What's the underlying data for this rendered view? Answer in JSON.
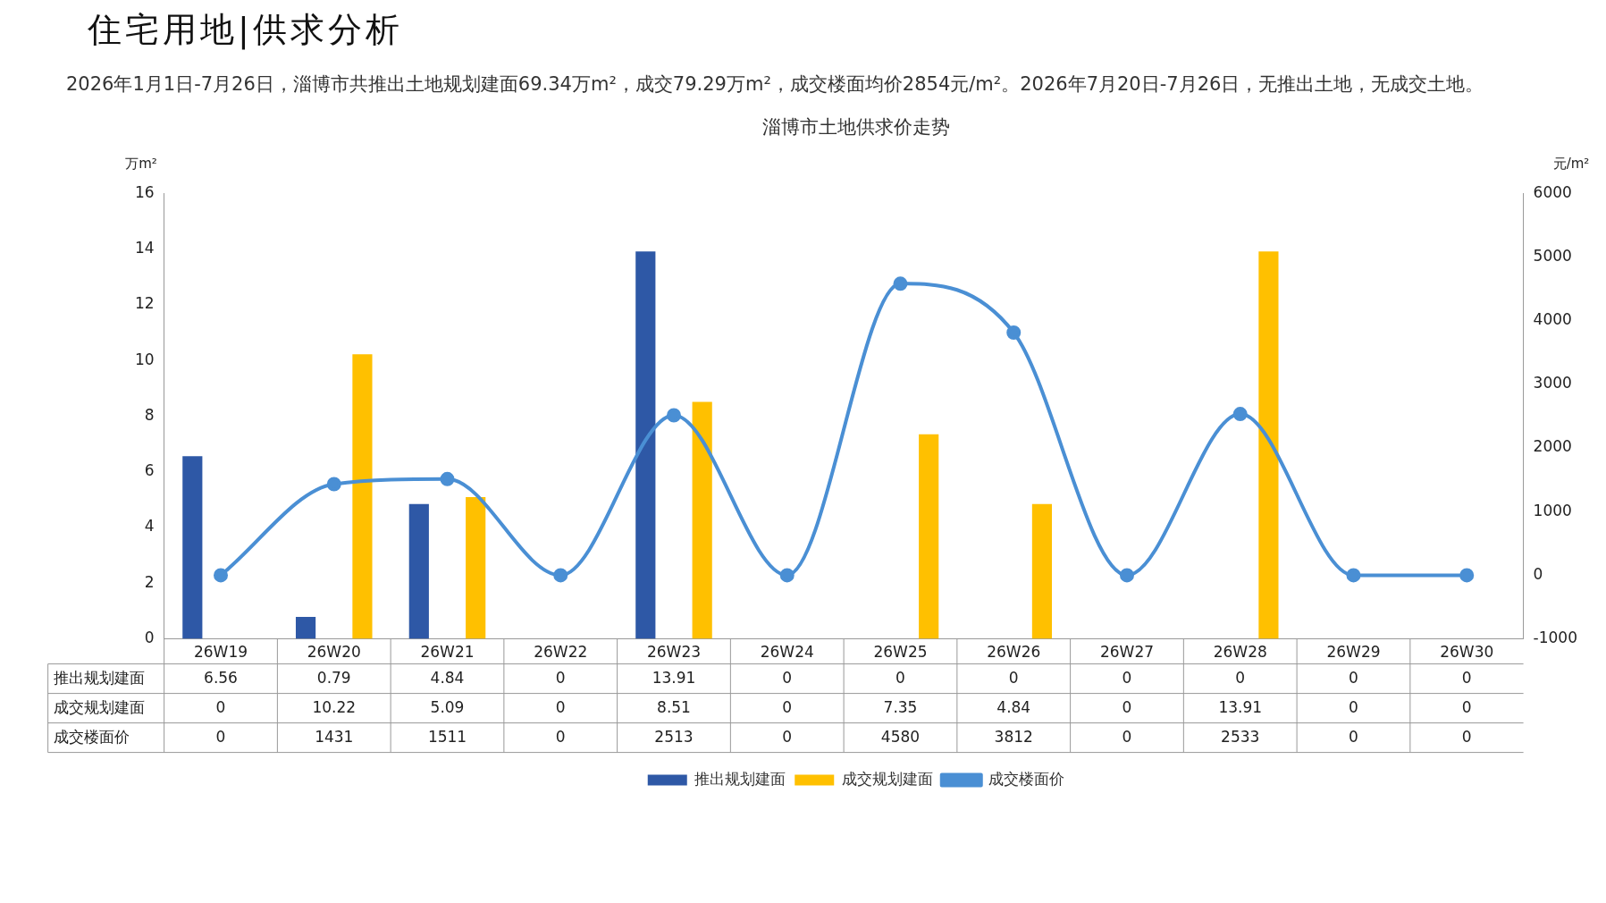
{
  "chart_data": {
    "type": "bar",
    "title": "淄博市土地供求价走势",
    "annotations": [
      "住宅用地|供求分析",
      "2026年1月1日-7月26日，淄博市共推出土地规划建面69.34万m²，成交79.29万m²，成交楼面均价2854元/m²。2026年7月20日-7月26日，无推出土地，无成交土地。"
    ],
    "ylabel": "万m²",
    "y2label": "元/m²",
    "categories": [
      "26W19",
      "26W20",
      "26W21",
      "26W22",
      "26W23",
      "26W24",
      "26W25",
      "26W26",
      "26W27",
      "26W28",
      "26W29",
      "26W30"
    ],
    "series": [
      {
        "name": "推出规划建面",
        "color": "#2e58a6",
        "values": [
          6.56,
          0.79,
          4.84,
          0,
          13.91,
          0,
          0,
          0,
          0,
          0,
          0,
          0
        ]
      },
      {
        "name": "成交规划建面",
        "color": "#ffc000",
        "values": [
          0,
          10.22,
          5.09,
          0,
          8.51,
          0,
          7.35,
          4.84,
          0,
          13.91,
          0,
          0
        ]
      },
      {
        "name": "成交楼面价",
        "type": "line",
        "axis": "y2",
        "color": "#4a8fd4",
        "values": [
          0,
          1431,
          1511,
          0,
          2513,
          0,
          4580,
          3812,
          0,
          2533,
          0,
          0
        ]
      }
    ],
    "ylim": [
      0,
      16
    ],
    "yticks": [
      0,
      2,
      4,
      6,
      8,
      10,
      12,
      14,
      16
    ],
    "y2lim": [
      -1000,
      6000
    ],
    "y2ticks": [
      -1000,
      0,
      1000,
      2000,
      3000,
      4000,
      5000,
      6000
    ],
    "data_labels": true,
    "legend": "bottom",
    "marker": "circle",
    "grid": false
  }
}
